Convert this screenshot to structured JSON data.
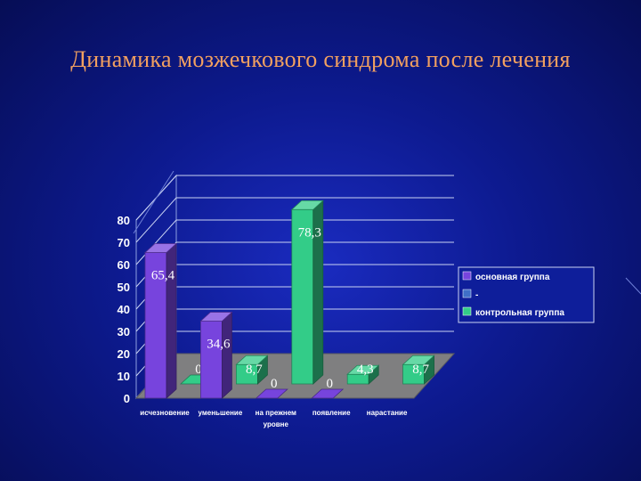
{
  "slide": {
    "title": "Динамика мозжечкового синдрома после лечения"
  },
  "chart_data": {
    "type": "bar",
    "title": "",
    "xlabel": "",
    "ylabel": "",
    "ylim": [
      0,
      80
    ],
    "yticks": [
      "0",
      "10",
      "20",
      "30",
      "40",
      "50",
      "60",
      "70",
      "80"
    ],
    "grid": true,
    "three_d": true,
    "legend_position": "right",
    "categories": [
      [
        "исчезновение"
      ],
      [
        "уменьшение"
      ],
      [
        "на прежнем",
        "уровне"
      ],
      [
        "появление"
      ],
      [
        "нарастание"
      ]
    ],
    "series": [
      {
        "name": "основная группа",
        "color": "#7744dd",
        "values": [
          65.4,
          34.6,
          0,
          0,
          null
        ],
        "labels": [
          "65,4",
          "34,6",
          "0",
          "0",
          ""
        ]
      },
      {
        "name": "-",
        "color": "#3f6fc8",
        "values": [
          null,
          null,
          null,
          null,
          null
        ],
        "labels": [
          "",
          "",
          "",
          "",
          ""
        ]
      },
      {
        "name": "контрольная группа",
        "color": "#33cc88",
        "values": [
          0,
          8.7,
          78.3,
          4.3,
          8.7
        ],
        "labels": [
          "0",
          "8,7",
          "78,3",
          "4,3",
          "8,7"
        ]
      }
    ]
  }
}
